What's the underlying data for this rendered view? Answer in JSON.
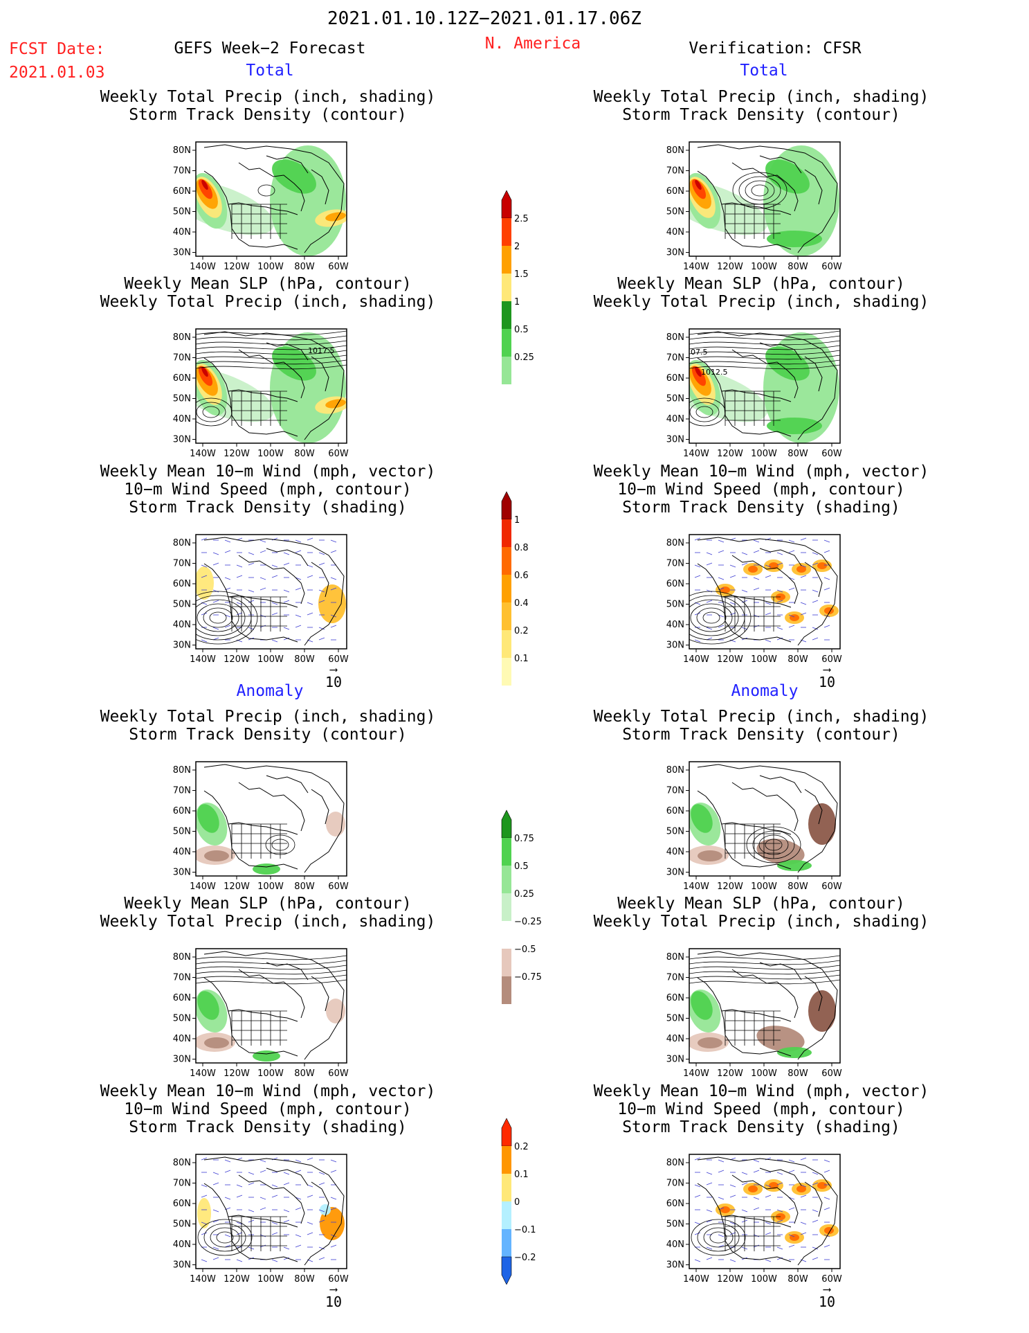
{
  "header": {
    "period": "2021.01.10.12Z−2021.01.17.06Z",
    "fcst_label": "FCST Date:",
    "fcst_date": "2021.01.03",
    "forecast_title": "GEFS Week−2 Forecast",
    "region": "N. America",
    "verification": "Verification: CFSR"
  },
  "sections": {
    "total": "Total",
    "anomaly": "Anomaly"
  },
  "titles": {
    "precip_track": [
      "Weekly Total Precip (inch, shading)",
      "Storm Track Density (contour)"
    ],
    "slp_precip": [
      "Weekly Mean SLP (hPa, contour)",
      "Weekly Total Precip (inch, shading)"
    ],
    "wind": [
      "Weekly Mean 10−m Wind (mph, vector)",
      "10−m Wind Speed (mph, contour)",
      "Storm Track Density (shading)"
    ]
  },
  "axes": {
    "lat_labels": [
      "80N",
      "70N",
      "60N",
      "50N",
      "40N",
      "30N"
    ],
    "lon_labels": [
      "140W",
      "120W",
      "100W",
      "80W",
      "60W"
    ]
  },
  "contour_labels": {
    "fcst_slp": "1017.5",
    "obs_slp_a": "07.5",
    "obs_slp_b": "1012.5"
  },
  "vector_ref": "10",
  "colorbars": {
    "precip_total": {
      "levels": [
        "0.25",
        "0.5",
        "1",
        "1.5",
        "2",
        "2.5"
      ],
      "colors": [
        "#c8f0c8",
        "#96e696",
        "#50d250",
        "#1e961e",
        "#ffe878",
        "#ffa000",
        "#ff4000",
        "#c80000"
      ]
    },
    "track_total": {
      "levels": [
        "0.1",
        "0.2",
        "0.4",
        "0.6",
        "0.8",
        "1"
      ],
      "colors": [
        "#fffab4",
        "#ffe878",
        "#ffc030",
        "#ffa000",
        "#ff6a00",
        "#f02800",
        "#a00000"
      ]
    },
    "precip_anom": {
      "levels": [
        "0.75",
        "0.5",
        "0.25",
        "−0.25",
        "−0.5",
        "−0.75"
      ],
      "colors": [
        "#1e961e",
        "#50d250",
        "#96e696",
        "#c8f0c8",
        "#ffffff",
        "#e6c8bc",
        "#b48c7c",
        "#8c5a4a",
        "#6e3c2c"
      ]
    },
    "track_anom": {
      "levels": [
        "0.2",
        "0.1",
        "0",
        "−0.1",
        "−0.2"
      ],
      "colors": [
        "#ff2a00",
        "#ff9600",
        "#ffe878",
        "#b4f0ff",
        "#64b4ff",
        "#1e64e6"
      ]
    }
  },
  "colors": {
    "red_text": "#ff2020",
    "blue_text": "#2020ff",
    "vector": "#3c3cd2"
  }
}
